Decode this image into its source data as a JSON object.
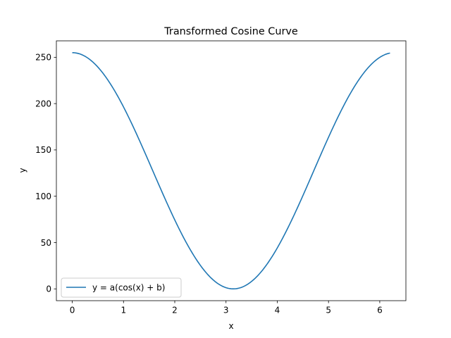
{
  "chart_data": {
    "type": "line",
    "title": "Transformed Cosine Curve",
    "xlabel": "x",
    "ylabel": "y",
    "xlim": [
      -0.31,
      6.51
    ],
    "ylim": [
      -12.75,
      267.75
    ],
    "xticks": [
      0,
      1,
      2,
      3,
      4,
      5,
      6
    ],
    "yticks": [
      0,
      50,
      100,
      150,
      200,
      250
    ],
    "grid": false,
    "legend_position": "lower-left",
    "series": [
      {
        "name": "y = a(cos(x) + b)",
        "color": "#1f77b4",
        "x_range": [
          0,
          6.2
        ],
        "x": [
          0,
          0.2,
          0.4,
          0.6,
          0.8,
          1.0,
          1.2,
          1.4,
          1.6,
          1.8,
          2.0,
          2.2,
          2.4,
          2.6,
          2.8,
          3.0,
          3.2,
          3.4,
          3.6,
          3.8,
          4.0,
          4.2,
          4.4,
          4.6,
          4.8,
          5.0,
          5.2,
          5.4,
          5.6,
          5.8,
          6.0,
          6.2
        ],
        "y": [
          255.0,
          252.5,
          245.0,
          232.7,
          216.3,
          196.4,
          173.7,
          148.9,
          122.6,
          96.2,
          70.4,
          47.2,
          33.9,
          15.4,
          6.2,
          1.3,
          0.3,
          3.1,
          9.5,
          20.6,
          44.2,
          60.9,
          87.8,
          114.3,
          140.8,
          163.7,
          189.1,
          212.2,
          228.4,
          240.3,
          249.7,
          254.3
        ]
      }
    ]
  }
}
